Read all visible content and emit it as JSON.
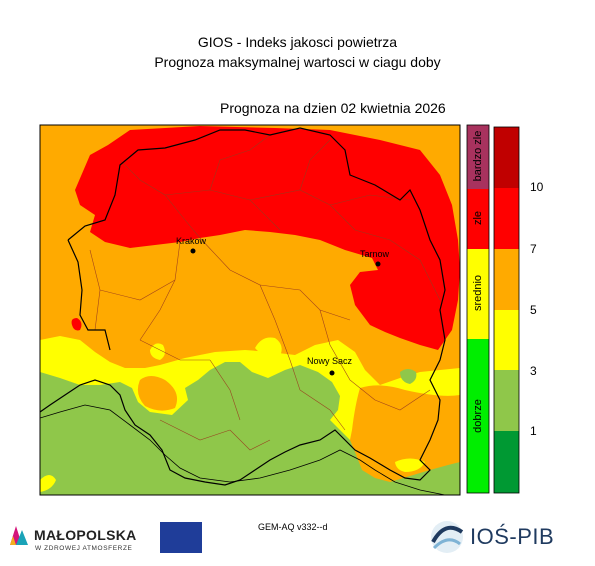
{
  "header": {
    "title_line1": "GIOS - Indeks jakosci powietrza",
    "title_line2": "Prognoza maksymalnej wartosci w ciagu doby",
    "forecast_date": "Prognoza na dzien  02 kwietnia 2026"
  },
  "map": {
    "cities": [
      {
        "name": "Krakow"
      },
      {
        "name": "Tarnow"
      },
      {
        "name": "Nowy Sacz"
      }
    ]
  },
  "legend": {
    "categories": [
      {
        "label": "bardzo zle",
        "color": "#a8325e"
      },
      {
        "label": "zle",
        "color": "#ff0000"
      },
      {
        "label": "srednio",
        "color": "#ffff00"
      },
      {
        "label": "dobrze",
        "color": "#00ee00"
      }
    ],
    "scale_colors": [
      "#009933",
      "#8fc74a",
      "#ffff00",
      "#ffaa00",
      "#ff0000",
      "#c00000"
    ],
    "ticks": [
      "1",
      "3",
      "5",
      "7",
      "10"
    ]
  },
  "footer": {
    "model": "GEM-AQ v332--d",
    "malopolska_name": "MAŁOPOLSKA",
    "malopolska_sub": "W ZDROWEJ ATMOSFERZE",
    "ios_name": "IOŚ-PIB"
  }
}
